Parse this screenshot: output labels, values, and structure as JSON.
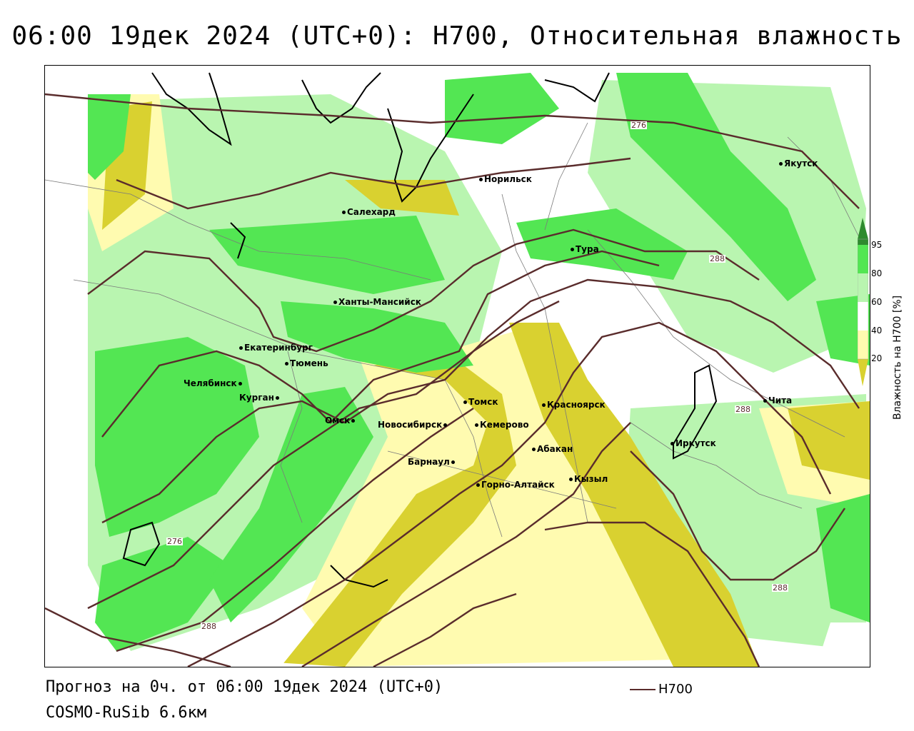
{
  "title": "06:00 19дек 2024 (UTC+0): H700, Относительная влажность",
  "footer": {
    "forecast": "Прогноз на 0ч. от 06:00 19дек 2024 (UTC+0)",
    "model": "COSMO-RuSib 6.6км",
    "line_legend": "H700"
  },
  "legend": {
    "title": "Влажность на H700 [%]",
    "ticks": [
      "95",
      "80",
      "60",
      "40",
      "20"
    ],
    "colors": {
      "very_high": "#2e8b2e",
      "high": "#53e653",
      "mid": "#b9f5b0",
      "low": "#fffbb0",
      "very_low": "#d9d130"
    }
  },
  "contour_color": "#5a2c2c",
  "contour_labels": [
    "276",
    "288",
    "288",
    "276",
    "288",
    "288"
  ],
  "cities": [
    "Норильск",
    "Якутск",
    "Салехард",
    "Тура",
    "Ханты-Мансийск",
    "Екатеринбург",
    "Тюмень",
    "Челябинск",
    "Курган",
    "Омск",
    "Новосибирск",
    "Томск",
    "Красноярск",
    "Кемерово",
    "Барнаул",
    "Абакан",
    "Горно-Алтайск",
    "Кызыл",
    "Иркутск",
    "Чита"
  ]
}
